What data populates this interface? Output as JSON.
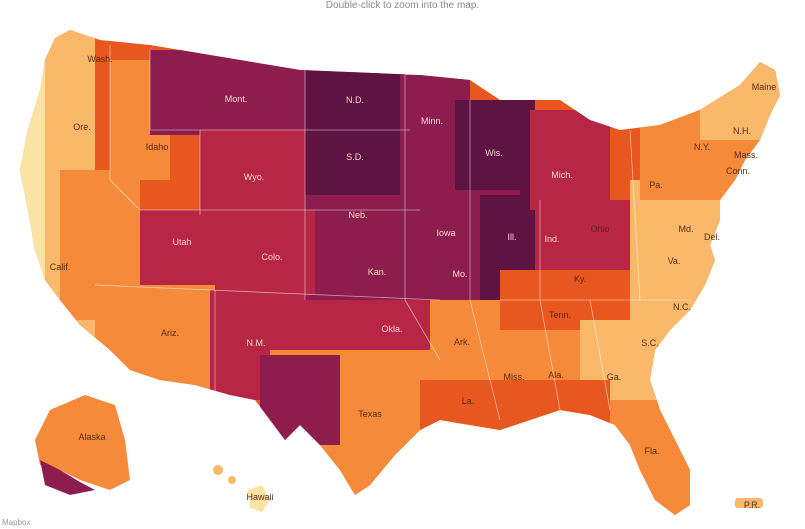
{
  "hint": "Double-click to zoom into the map.",
  "credit": "Mapbox",
  "palette": {
    "c1": "#fbe3a3",
    "c2": "#f9b86a",
    "c3": "#f58a3a",
    "c4": "#e8571f",
    "c5": "#b72645",
    "c6": "#8e1d4f",
    "c7": "#5f1343",
    "c8": "#3b0a36"
  },
  "state_labels": [
    {
      "id": "wash",
      "text": "Wash."
    },
    {
      "id": "ore",
      "text": "Ore."
    },
    {
      "id": "calif",
      "text": "Calif."
    },
    {
      "id": "idaho",
      "text": "Idaho"
    },
    {
      "id": "mont",
      "text": "Mont."
    },
    {
      "id": "wyo",
      "text": "Wyo."
    },
    {
      "id": "utah",
      "text": "Utah"
    },
    {
      "id": "colo",
      "text": "Colo."
    },
    {
      "id": "ariz",
      "text": "Ariz."
    },
    {
      "id": "nm",
      "text": "N.M."
    },
    {
      "id": "nd",
      "text": "N.D."
    },
    {
      "id": "sd",
      "text": "S.D."
    },
    {
      "id": "neb",
      "text": "Neb."
    },
    {
      "id": "kan",
      "text": "Kan."
    },
    {
      "id": "okla",
      "text": "Okla."
    },
    {
      "id": "texas",
      "text": "Texas"
    },
    {
      "id": "minn",
      "text": "Minn."
    },
    {
      "id": "iowa",
      "text": "Iowa"
    },
    {
      "id": "mo",
      "text": "Mo."
    },
    {
      "id": "ark",
      "text": "Ark."
    },
    {
      "id": "la",
      "text": "La."
    },
    {
      "id": "wis",
      "text": "Wis."
    },
    {
      "id": "ill",
      "text": "Ill."
    },
    {
      "id": "mich",
      "text": "Mich."
    },
    {
      "id": "ind",
      "text": "Ind."
    },
    {
      "id": "ohio",
      "text": "Ohio"
    },
    {
      "id": "ky",
      "text": "Ky."
    },
    {
      "id": "tenn",
      "text": "Tenn."
    },
    {
      "id": "miss",
      "text": "Miss."
    },
    {
      "id": "ala",
      "text": "Ala."
    },
    {
      "id": "ga",
      "text": "Ga."
    },
    {
      "id": "fla",
      "text": "Fla."
    },
    {
      "id": "sc",
      "text": "S.C."
    },
    {
      "id": "nc",
      "text": "N.C."
    },
    {
      "id": "va",
      "text": "Va."
    },
    {
      "id": "md",
      "text": "Md."
    },
    {
      "id": "del",
      "text": "Del."
    },
    {
      "id": "pa",
      "text": "Pa."
    },
    {
      "id": "ny",
      "text": "N.Y."
    },
    {
      "id": "conn",
      "text": "Conn."
    },
    {
      "id": "mass",
      "text": "Mass."
    },
    {
      "id": "nh",
      "text": "N.H."
    },
    {
      "id": "maine",
      "text": "Maine"
    },
    {
      "id": "alaska",
      "text": "Alaska"
    },
    {
      "id": "hawaii",
      "text": "Hawaii"
    },
    {
      "id": "pr",
      "text": "P.R."
    }
  ]
}
